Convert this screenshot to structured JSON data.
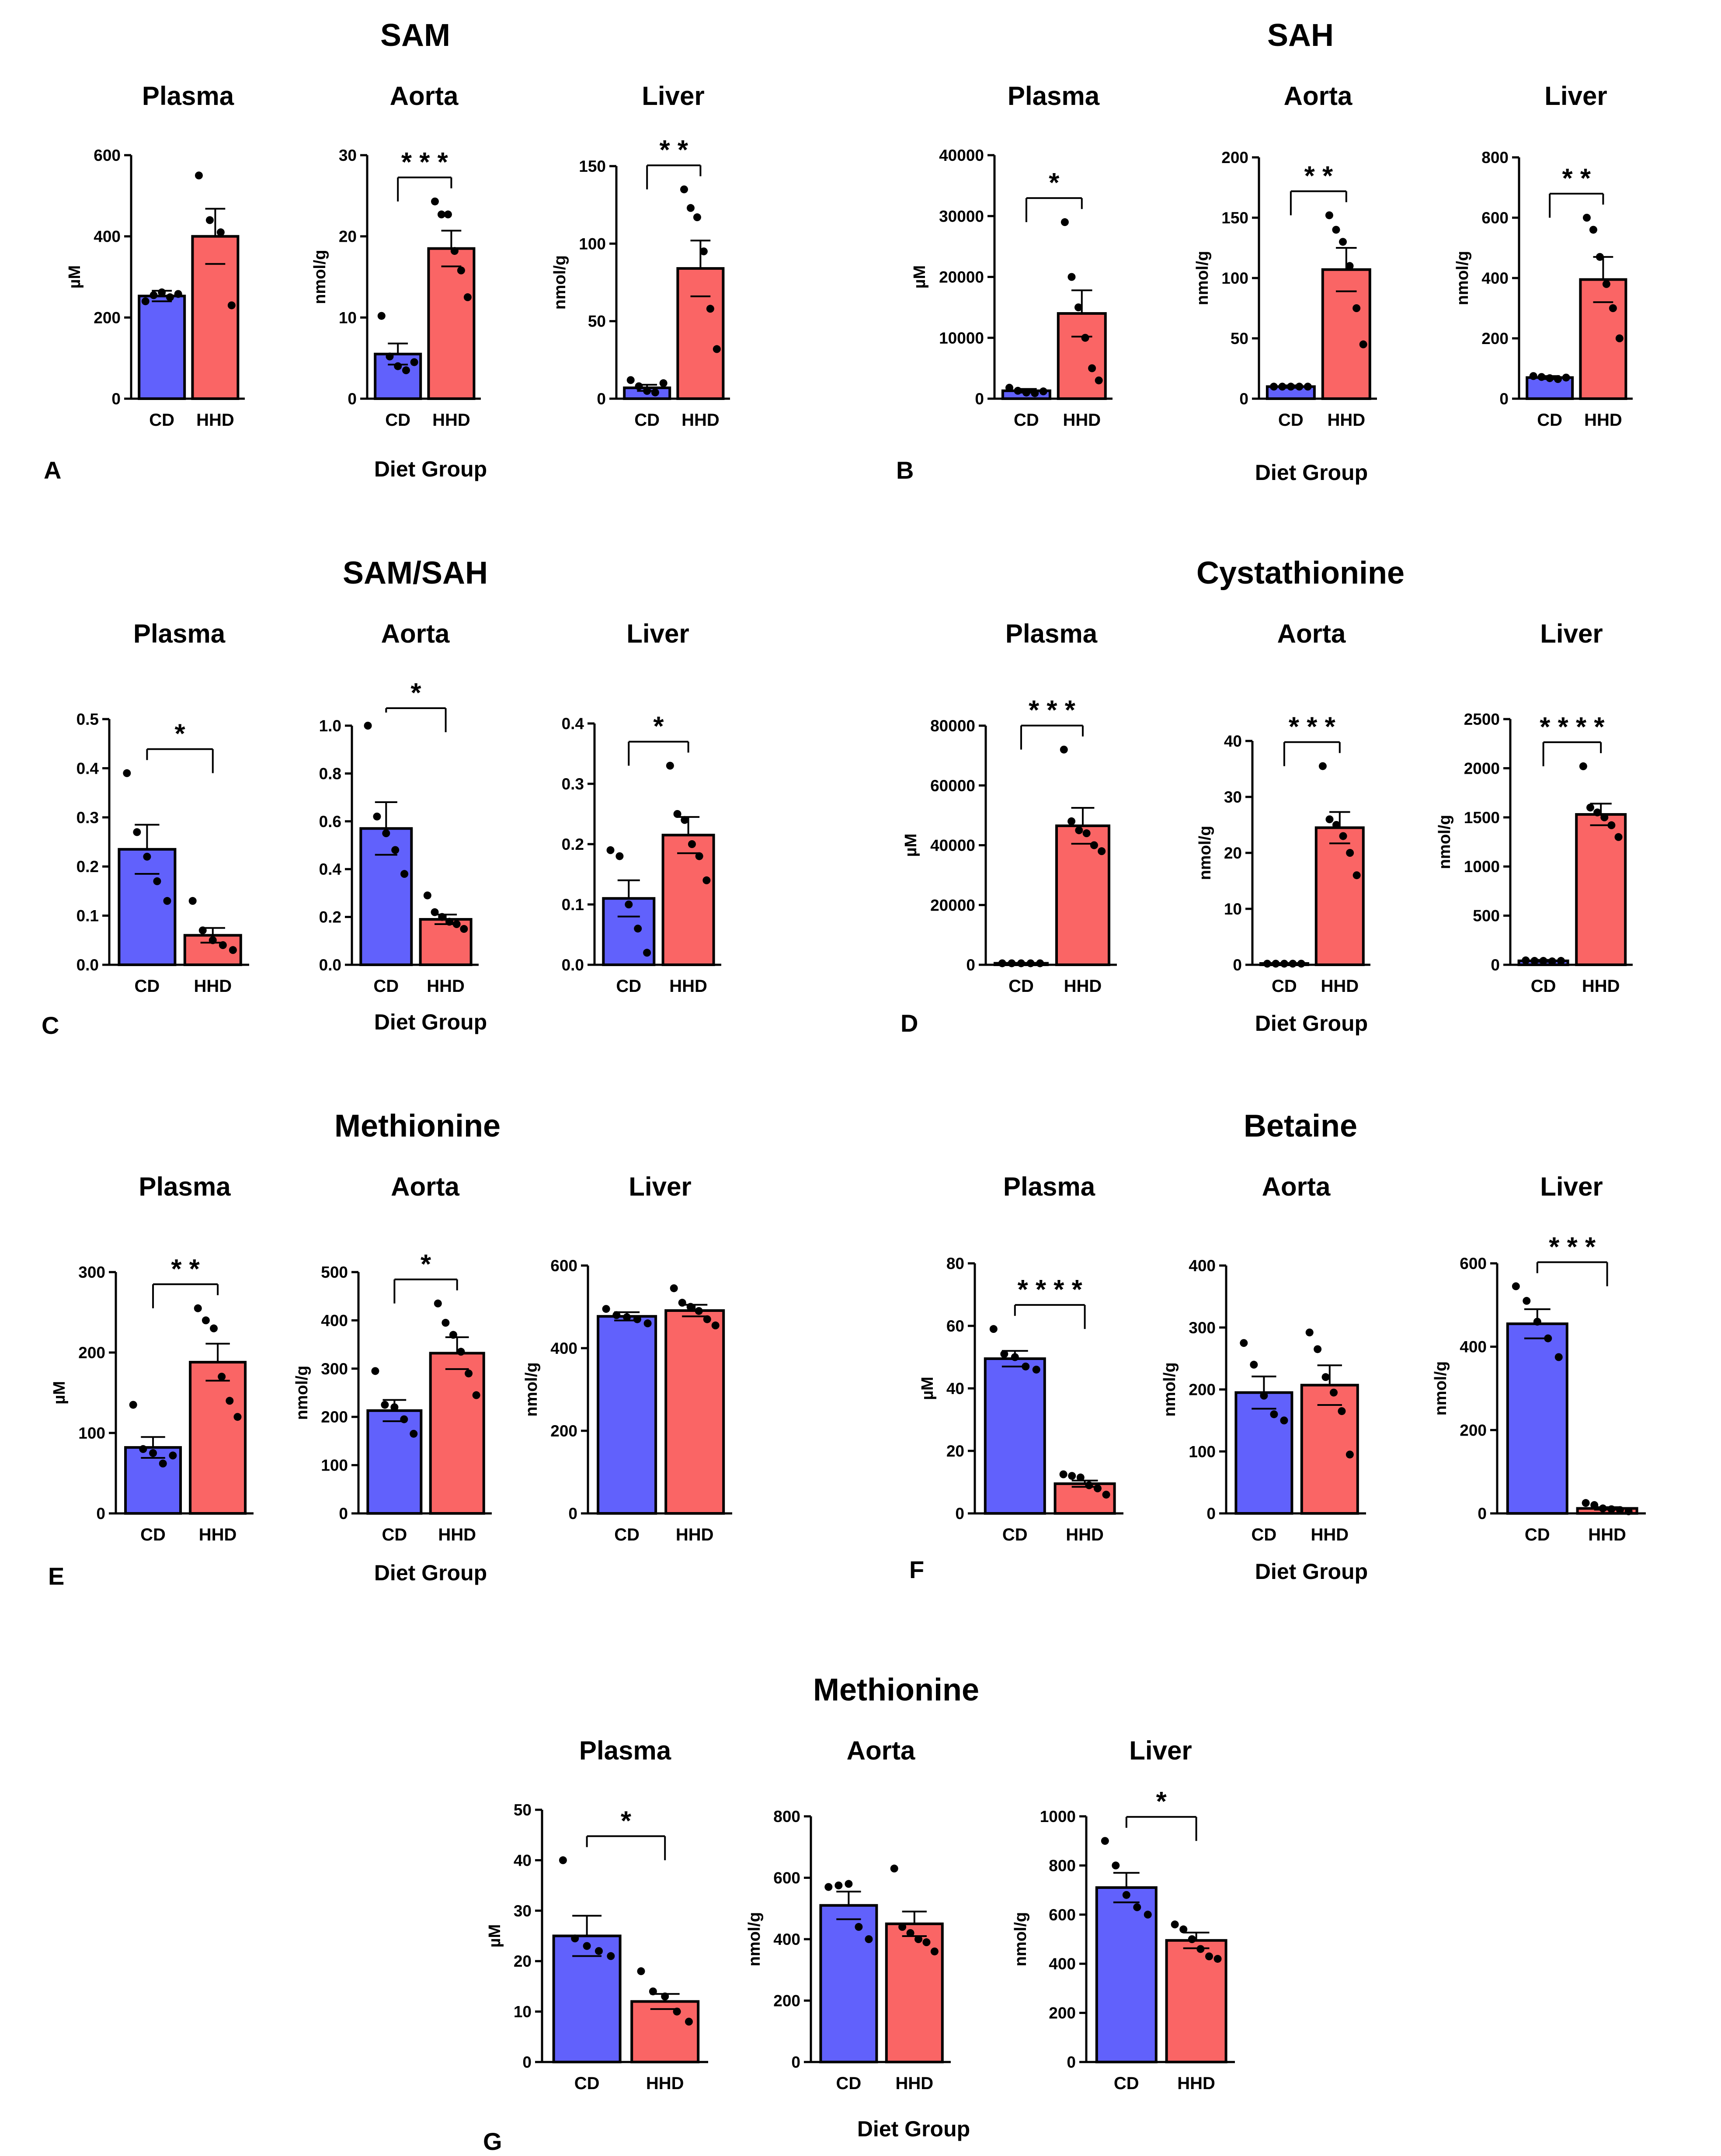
{
  "figure": {
    "colors": {
      "CD": "#6161fc",
      "HHD": "#fa6565"
    },
    "groups": [
      {
        "id": "A",
        "title": "SAM",
        "letter": "A",
        "xlabel": "Diet Group"
      },
      {
        "id": "B",
        "title": "SAH",
        "letter": "B",
        "xlabel": "Diet Group"
      },
      {
        "id": "C",
        "title": "SAM/SAH",
        "letter": "C",
        "xlabel": "Diet Group"
      },
      {
        "id": "D",
        "title": "Cystathionine",
        "letter": "D",
        "xlabel": "Diet Group"
      },
      {
        "id": "E",
        "title": "Methionine",
        "letter": "E",
        "xlabel": "Diet Group"
      },
      {
        "id": "F",
        "title": "Betaine",
        "letter": "F",
        "xlabel": "Diet Group"
      },
      {
        "id": "G",
        "title": "Methionine",
        "letter": "G",
        "xlabel": "Diet Group"
      }
    ]
  },
  "chart_data": [
    {
      "type": "bar",
      "group": "A",
      "title": "Plasma",
      "ylabel": "µM",
      "ylim": [
        0,
        600
      ],
      "ticks": [
        0,
        200,
        400,
        600
      ],
      "categories": [
        "CD",
        "HHD"
      ],
      "values": [
        253,
        400
      ],
      "sem": [
        13,
        68
      ],
      "points": [
        [
          240,
          255,
          262,
          250,
          258
        ],
        [
          550,
          440,
          410,
          230
        ]
      ],
      "significance": ""
    },
    {
      "type": "bar",
      "group": "A",
      "title": "Aorta",
      "ylabel": "nmol/g",
      "ylim": [
        0,
        30
      ],
      "ticks": [
        0,
        10,
        20,
        30
      ],
      "categories": [
        "CD",
        "HHD"
      ],
      "values": [
        5.5,
        18.5
      ],
      "sem": [
        1.3,
        2.2
      ],
      "points": [
        [
          10.2,
          5.2,
          4.0,
          3.5,
          4.5
        ],
        [
          24.3,
          22.7,
          22.7,
          18.2,
          15.8,
          12.5
        ]
      ],
      "significance": "* * *"
    },
    {
      "type": "bar",
      "group": "A",
      "title": "Liver",
      "ylabel": "nmol/g",
      "ylim": [
        0,
        150
      ],
      "ticks": [
        0,
        50,
        100,
        150
      ],
      "categories": [
        "CD",
        "HHD"
      ],
      "values": [
        7,
        84
      ],
      "sem": [
        2,
        18
      ],
      "points": [
        [
          12,
          8,
          5,
          4,
          10
        ],
        [
          135,
          123,
          117,
          95,
          58,
          32
        ]
      ],
      "significance": "* *"
    },
    {
      "type": "bar",
      "group": "B",
      "title": "Plasma",
      "ylabel": "µM",
      "ylim": [
        0,
        40000
      ],
      "ticks": [
        0,
        10000,
        20000,
        30000,
        40000
      ],
      "categories": [
        "CD",
        "HHD"
      ],
      "values": [
        1300,
        14000
      ],
      "sem": [
        300,
        3800
      ],
      "points": [
        [
          1800,
          1300,
          1000,
          900,
          1200
        ],
        [
          29000,
          20000,
          15000,
          10000,
          5000,
          3000
        ]
      ],
      "significance": "*"
    },
    {
      "type": "bar",
      "group": "B",
      "title": "Aorta",
      "ylabel": "nmol/g",
      "ylim": [
        0,
        200
      ],
      "ticks": [
        0,
        50,
        100,
        150,
        200
      ],
      "categories": [
        "CD",
        "HHD"
      ],
      "values": [
        10,
        107
      ],
      "sem": [
        1,
        18
      ],
      "points": [
        [
          10,
          10,
          10,
          10,
          10
        ],
        [
          152,
          140,
          130,
          110,
          75,
          45
        ]
      ],
      "significance": "* *"
    },
    {
      "type": "bar",
      "group": "B",
      "title": "Liver",
      "ylabel": "nmol/g",
      "ylim": [
        0,
        800
      ],
      "ticks": [
        0,
        200,
        400,
        600,
        800
      ],
      "categories": [
        "CD",
        "HHD"
      ],
      "values": [
        70,
        395
      ],
      "sem": [
        5,
        75
      ],
      "points": [
        [
          75,
          72,
          68,
          65,
          70
        ],
        [
          600,
          560,
          470,
          380,
          300,
          200
        ]
      ],
      "significance": "* *"
    },
    {
      "type": "bar",
      "group": "C",
      "title": "Plasma",
      "ylabel": "",
      "ylim": [
        0,
        0.5
      ],
      "ticks": [
        0.0,
        0.1,
        0.2,
        0.3,
        0.4,
        0.5
      ],
      "categories": [
        "CD",
        "HHD"
      ],
      "values": [
        0.235,
        0.06
      ],
      "sem": [
        0.05,
        0.015
      ],
      "points": [
        [
          0.39,
          0.27,
          0.22,
          0.17,
          0.13
        ],
        [
          0.13,
          0.07,
          0.05,
          0.04,
          0.03
        ]
      ],
      "significance": "*"
    },
    {
      "type": "bar",
      "group": "C",
      "title": "Aorta",
      "ylabel": "",
      "ylim": [
        0,
        1.0
      ],
      "ticks": [
        0.0,
        0.2,
        0.4,
        0.6,
        0.8,
        1.0
      ],
      "categories": [
        "CD",
        "HHD"
      ],
      "values": [
        0.57,
        0.19
      ],
      "sem": [
        0.11,
        0.02
      ],
      "points": [
        [
          1.0,
          0.62,
          0.55,
          0.48,
          0.38
        ],
        [
          0.29,
          0.22,
          0.2,
          0.18,
          0.17,
          0.15
        ]
      ],
      "significance": "*"
    },
    {
      "type": "bar",
      "group": "C",
      "title": "Liver",
      "ylabel": "",
      "ylim": [
        0,
        0.4
      ],
      "ticks": [
        0.0,
        0.1,
        0.2,
        0.3,
        0.4
      ],
      "categories": [
        "CD",
        "HHD"
      ],
      "values": [
        0.11,
        0.215
      ],
      "sem": [
        0.03,
        0.03
      ],
      "points": [
        [
          0.19,
          0.18,
          0.1,
          0.06,
          0.02
        ],
        [
          0.33,
          0.25,
          0.24,
          0.2,
          0.18,
          0.14
        ]
      ],
      "significance": "*"
    },
    {
      "type": "bar",
      "group": "D",
      "title": "Plasma",
      "ylabel": "µM",
      "ylim": [
        0,
        80000
      ],
      "ticks": [
        0,
        20000,
        40000,
        60000,
        80000
      ],
      "categories": [
        "CD",
        "HHD"
      ],
      "values": [
        500,
        46500
      ],
      "sem": [
        100,
        6000
      ],
      "points": [
        [
          500,
          500,
          500,
          500,
          500
        ],
        [
          72000,
          48000,
          45000,
          44000,
          40000,
          38000
        ]
      ],
      "significance": "* * *"
    },
    {
      "type": "bar",
      "group": "D",
      "title": "Aorta",
      "ylabel": "nmol/g",
      "ylim": [
        0,
        40
      ],
      "ticks": [
        0,
        10,
        20,
        30,
        40
      ],
      "categories": [
        "CD",
        "HHD"
      ],
      "values": [
        0.2,
        24.5
      ],
      "sem": [
        0.05,
        2.8
      ],
      "points": [
        [
          0.2,
          0.2,
          0.2,
          0.2,
          0.2
        ],
        [
          35.5,
          26,
          25,
          23,
          20,
          16
        ]
      ],
      "significance": "* * *"
    },
    {
      "type": "bar",
      "group": "D",
      "title": "Liver",
      "ylabel": "nmol/g",
      "ylim": [
        0,
        2500
      ],
      "ticks": [
        0,
        500,
        1000,
        1500,
        2000,
        2500
      ],
      "categories": [
        "CD",
        "HHD"
      ],
      "values": [
        40,
        1530
      ],
      "sem": [
        10,
        110
      ],
      "points": [
        [
          45,
          40,
          40,
          35,
          40
        ],
        [
          2020,
          1600,
          1550,
          1500,
          1420,
          1300
        ]
      ],
      "significance": "* * * *"
    },
    {
      "type": "bar",
      "group": "E",
      "title": "Plasma",
      "ylabel": "µM",
      "ylim": [
        0,
        300
      ],
      "ticks": [
        0,
        100,
        200,
        300
      ],
      "categories": [
        "CD",
        "HHD"
      ],
      "values": [
        82,
        188
      ],
      "sem": [
        13,
        23
      ],
      "points": [
        [
          135,
          80,
          75,
          62,
          72
        ],
        [
          255,
          240,
          230,
          170,
          140,
          120
        ]
      ],
      "significance": "* *"
    },
    {
      "type": "bar",
      "group": "E",
      "title": "Aorta",
      "ylabel": "nmol/g",
      "ylim": [
        0,
        500
      ],
      "ticks": [
        0,
        100,
        200,
        300,
        400,
        500
      ],
      "categories": [
        "CD",
        "HHD"
      ],
      "values": [
        213,
        332
      ],
      "sem": [
        22,
        33
      ],
      "points": [
        [
          295,
          225,
          220,
          195,
          165
        ],
        [
          435,
          395,
          370,
          335,
          290,
          245
        ]
      ],
      "significance": "*"
    },
    {
      "type": "bar",
      "group": "E",
      "title": "Liver",
      "ylabel": "nmol/g",
      "ylim": [
        0,
        600
      ],
      "ticks": [
        0,
        200,
        400,
        600
      ],
      "categories": [
        "CD",
        "HHD"
      ],
      "values": [
        477,
        491
      ],
      "sem": [
        10,
        14
      ],
      "points": [
        [
          495,
          480,
          475,
          470,
          460
        ],
        [
          545,
          510,
          500,
          490,
          470,
          455
        ]
      ],
      "significance": ""
    },
    {
      "type": "bar",
      "group": "F",
      "title": "Plasma",
      "ylabel": "µM",
      "ylim": [
        0,
        80
      ],
      "ticks": [
        0,
        20,
        40,
        60,
        80
      ],
      "categories": [
        "CD",
        "HHD"
      ],
      "values": [
        49.5,
        9.5
      ],
      "sem": [
        2.5,
        1.0
      ],
      "points": [
        [
          59,
          51,
          50,
          47,
          46
        ],
        [
          12.5,
          12,
          11.5,
          9,
          8,
          6
        ]
      ],
      "significance": "* * * *"
    },
    {
      "type": "bar",
      "group": "F",
      "title": "Aorta",
      "ylabel": "nmol/g",
      "ylim": [
        0,
        400
      ],
      "ticks": [
        0,
        100,
        200,
        300,
        400
      ],
      "categories": [
        "CD",
        "HHD"
      ],
      "values": [
        195,
        207
      ],
      "sem": [
        26,
        32
      ],
      "points": [
        [
          275,
          240,
          190,
          160,
          150
        ],
        [
          292,
          265,
          220,
          195,
          165,
          95
        ]
      ],
      "significance": ""
    },
    {
      "type": "bar",
      "group": "F",
      "title": "Liver",
      "ylabel": "nmol/g",
      "ylim": [
        0,
        600
      ],
      "ticks": [
        0,
        200,
        400,
        600
      ],
      "categories": [
        "CD",
        "HHD"
      ],
      "values": [
        455,
        12
      ],
      "sem": [
        35,
        3
      ],
      "points": [
        [
          545,
          510,
          460,
          420,
          375
        ],
        [
          25,
          20,
          12,
          10,
          8,
          5
        ]
      ],
      "significance": "* * *"
    },
    {
      "type": "bar",
      "group": "G",
      "title": "Plasma",
      "ylabel": "µM",
      "ylim": [
        0,
        50
      ],
      "ticks": [
        0,
        10,
        20,
        30,
        40,
        50
      ],
      "categories": [
        "CD",
        "HHD"
      ],
      "values": [
        25,
        12
      ],
      "sem": [
        4,
        1.5
      ],
      "points": [
        [
          40,
          24.5,
          23,
          22,
          21
        ],
        [
          18,
          14,
          13,
          10,
          8
        ]
      ],
      "significance": "*"
    },
    {
      "type": "bar",
      "group": "G",
      "title": "Aorta",
      "ylabel": "nmol/g",
      "ylim": [
        0,
        800
      ],
      "ticks": [
        0,
        200,
        400,
        600,
        800
      ],
      "categories": [
        "CD",
        "HHD"
      ],
      "values": [
        510,
        450
      ],
      "sem": [
        45,
        40
      ],
      "points": [
        [
          570,
          575,
          580,
          440,
          400
        ],
        [
          630,
          440,
          420,
          400,
          390,
          360
        ]
      ],
      "significance": ""
    },
    {
      "type": "bar",
      "group": "G",
      "title": "Liver",
      "ylabel": "nmol/g",
      "ylim": [
        0,
        1000
      ],
      "ticks": [
        0,
        200,
        400,
        600,
        800,
        1000
      ],
      "categories": [
        "CD",
        "HHD"
      ],
      "values": [
        710,
        495
      ],
      "sem": [
        60,
        32
      ],
      "points": [
        [
          900,
          800,
          680,
          630,
          600
        ],
        [
          560,
          540,
          500,
          460,
          430,
          420
        ]
      ],
      "significance": "*"
    }
  ]
}
